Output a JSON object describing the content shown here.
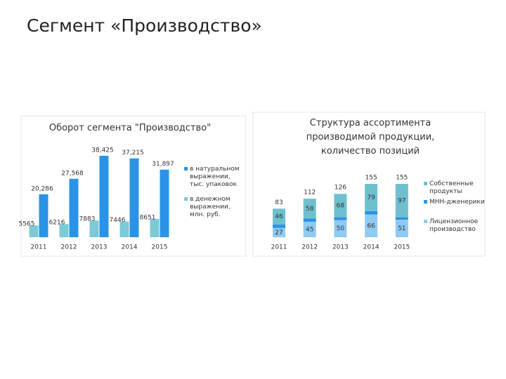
{
  "title": "Сегмент «Производство»",
  "chart_data": [
    {
      "type": "bar",
      "title": "Оборот сегмента \"Производство\"",
      "categories": [
        "2011",
        "2012",
        "2013",
        "2014",
        "2015"
      ],
      "series": [
        {
          "name": "в денежном выражении, млн. руб.",
          "color": "#7ccad6",
          "values": [
            5565,
            6216,
            7883,
            7446,
            8651
          ]
        },
        {
          "name": "в натуральном выражении, тыс. упаковок",
          "color": "#2a93e6",
          "values": [
            20286,
            27568,
            38425,
            37215,
            31897
          ],
          "value_labels": [
            "20,286",
            "27,568",
            "38,425",
            "37,215",
            "31,897"
          ]
        }
      ]
    },
    {
      "type": "stacked_bar",
      "title": "Структура ассортимента производимой продукции, количество позиций",
      "categories": [
        "2011",
        "2012",
        "2013",
        "2014",
        "2015"
      ],
      "series": [
        {
          "name": "Лицензионное производство",
          "color": "#8fcaf2",
          "values": [
            27,
            45,
            50,
            66,
            51
          ]
        },
        {
          "name": "МНН-дженерики",
          "color": "#2a93e6",
          "values": [
            10,
            9,
            8,
            10,
            7
          ]
        },
        {
          "name": "Собственные продукты",
          "color": "#6fc0cf",
          "values": [
            46,
            58,
            68,
            79,
            97
          ]
        }
      ],
      "totals": [
        83,
        112,
        126,
        155,
        155
      ]
    }
  ]
}
